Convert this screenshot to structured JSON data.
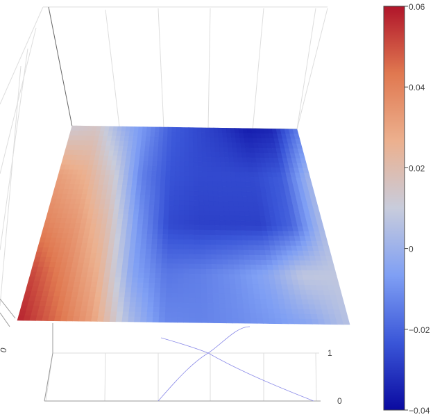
{
  "chart_data": {
    "type": "surface",
    "title": "",
    "colorscale": "coolwarm",
    "colorbar": {
      "range": [
        -0.04,
        0.06
      ],
      "tick_values": [
        0.06,
        0.04,
        0.02,
        0,
        -0.02,
        -0.04
      ],
      "tick_labels": [
        "0.06",
        "0.04",
        "0.02",
        "0",
        "−0.02",
        "−0.04"
      ],
      "colors": [
        "#0a0aa0",
        "#3a56d8",
        "#7f9ff4",
        "#c8ccdc",
        "#ecb08e",
        "#e07850",
        "#b0152a"
      ]
    },
    "axes": {
      "y_tick_labels": [
        "1",
        "0"
      ],
      "x_tick_labels": [
        "0"
      ]
    },
    "grid": true,
    "z_values": [
      [
        0.012,
        0.015,
        0.0,
        -0.01,
        -0.022,
        -0.026,
        -0.03,
        -0.036,
        -0.034,
        -0.015
      ],
      [
        0.032,
        0.026,
        0.012,
        -0.014,
        -0.024,
        -0.026,
        -0.026,
        -0.026,
        -0.022,
        0.002
      ],
      [
        0.04,
        0.034,
        0.02,
        -0.008,
        -0.026,
        -0.028,
        -0.028,
        -0.028,
        -0.02,
        0.004
      ],
      [
        0.052,
        0.04,
        0.026,
        -0.005,
        -0.016,
        -0.014,
        -0.01,
        -0.004,
        0.008,
        0.008
      ],
      [
        0.058,
        0.046,
        0.032,
        0.004,
        -0.012,
        -0.013,
        -0.011,
        -0.008,
        -0.004,
        0.006
      ]
    ]
  }
}
